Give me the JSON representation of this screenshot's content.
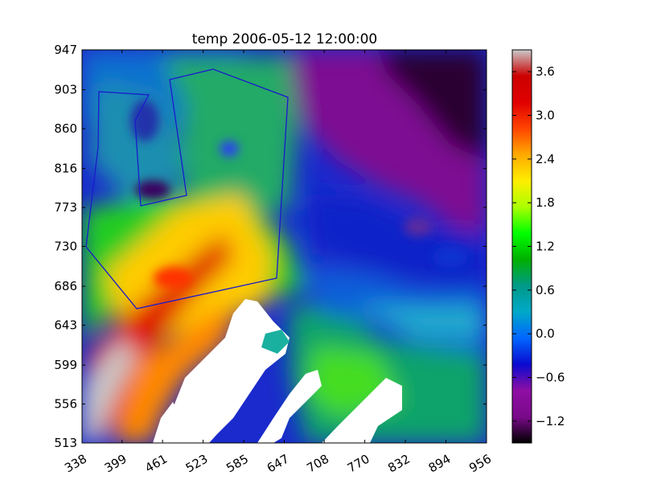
{
  "chart_data": {
    "type": "heatmap",
    "title": "temp 2006-05-12 12:00:00",
    "variable": "temp",
    "timestamp": "2006-05-12 12:00:00",
    "x_ticks": [
      "338",
      "399",
      "461",
      "523",
      "585",
      "647",
      "708",
      "770",
      "832",
      "894",
      "956"
    ],
    "y_ticks": [
      "513",
      "556",
      "599",
      "643",
      "686",
      "730",
      "773",
      "816",
      "860",
      "903",
      "947"
    ],
    "xlim": [
      338,
      956
    ],
    "ylim": [
      513,
      947
    ],
    "colorbar": {
      "ticks": [
        "3.6",
        "3.0",
        "2.4",
        "1.8",
        "1.2",
        "0.6",
        "0.0",
        "−0.6",
        "−1.2"
      ],
      "tick_values": [
        3.6,
        3.0,
        2.4,
        1.8,
        1.2,
        0.6,
        0.0,
        -0.6,
        -1.2
      ],
      "range": [
        -1.5,
        3.9
      ],
      "colors": [
        "#000000",
        "#7a0a8a",
        "#8e0ea4",
        "#0a0ad0",
        "#0066ff",
        "#00a8c8",
        "#009a88",
        "#00b000",
        "#00ff00",
        "#aaff00",
        "#ffee00",
        "#ffaa00",
        "#ff4400",
        "#e00000",
        "#cc0000",
        "#c9c9c9"
      ]
    },
    "land_color": "#ffffff",
    "outline_color": "#1a1acc"
  }
}
